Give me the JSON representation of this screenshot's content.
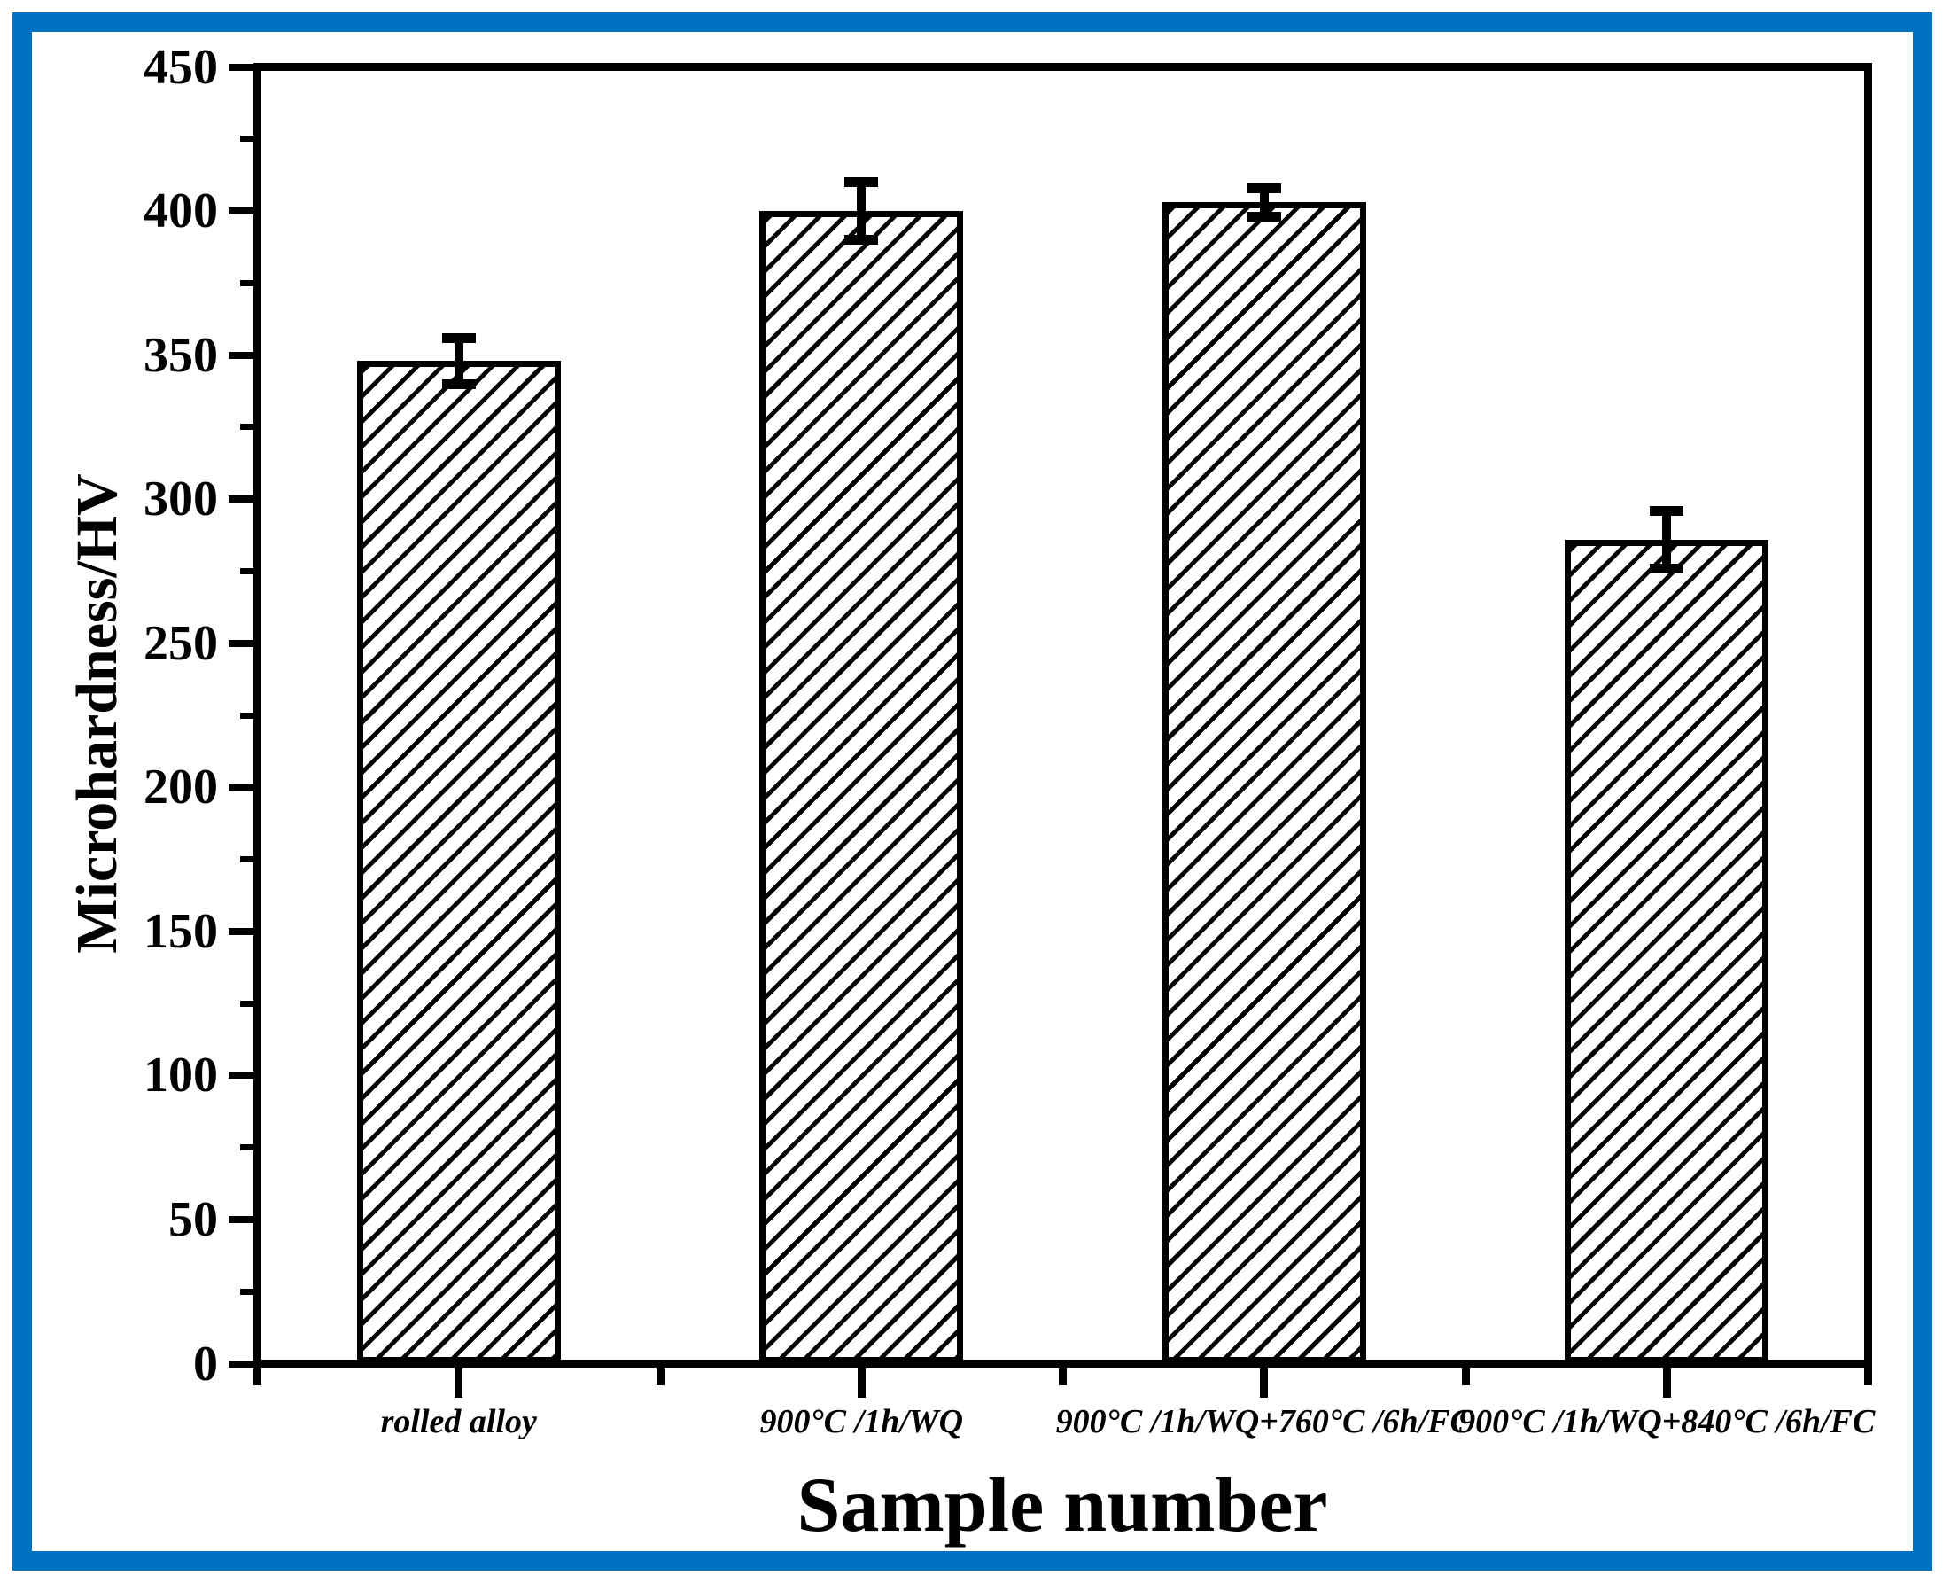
{
  "page": {
    "background": "#ffffff",
    "border_color": "#0072C4",
    "ink_color": "#000000"
  },
  "chart_data": {
    "type": "bar",
    "title": "",
    "xlabel": "Sample number",
    "ylabel": "Microhardness/HV",
    "categories": [
      "rolled alloy",
      "900°C /1h/WQ",
      "900°C /1h/WQ+760°C /6h/FC",
      "900°C /1h/WQ+840°C /6h/FC"
    ],
    "values": [
      348,
      400,
      403,
      286
    ],
    "errors": [
      8,
      10,
      5,
      10
    ],
    "ylim": [
      0,
      450
    ],
    "y_major_tick_step": 50,
    "y_minor_tick_step": 25,
    "y_tick_labels": [
      "0",
      "50",
      "100",
      "150",
      "200",
      "250",
      "300",
      "350",
      "400",
      "450"
    ],
    "bar_fill": "#ffffff",
    "bar_hatch": "forward-diagonal",
    "bar_edge_color": "#000000",
    "error_bar_color": "#000000",
    "grid": false,
    "legend": "none"
  }
}
